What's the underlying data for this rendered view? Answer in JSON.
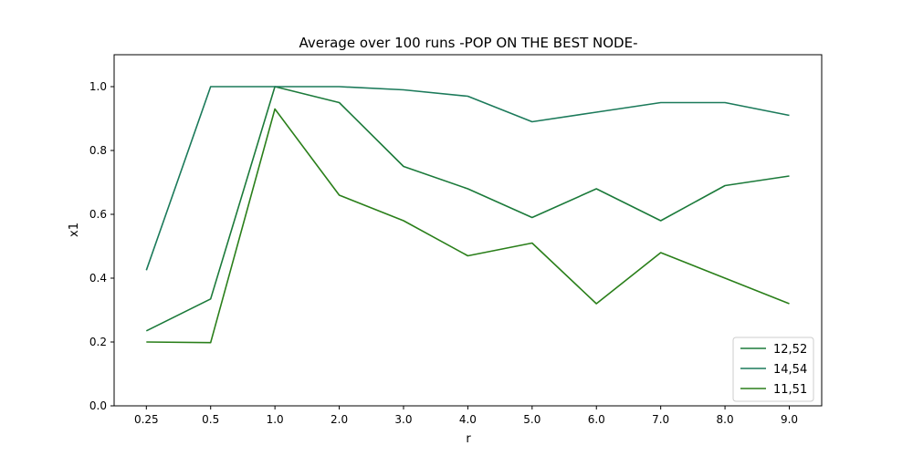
{
  "chart_data": {
    "type": "line",
    "title": "Average over 100 runs -POP ON THE BEST NODE-",
    "xlabel": "r",
    "ylabel": "x1",
    "categories": [
      "0.25",
      "0.5",
      "1.0",
      "2.0",
      "3.0",
      "4.0",
      "5.0",
      "6.0",
      "7.0",
      "8.0",
      "9.0"
    ],
    "yticks": [
      "0.0",
      "0.2",
      "0.4",
      "0.6",
      "0.8",
      "1.0"
    ],
    "ylim": [
      0,
      1.1
    ],
    "grid": false,
    "legend_position": "lower-right",
    "series": [
      {
        "name": "12,52",
        "color": "#1b7a3a",
        "values": [
          0.235,
          0.335,
          1.0,
          0.95,
          0.75,
          0.68,
          0.59,
          0.68,
          0.58,
          0.69,
          0.72
        ]
      },
      {
        "name": "14,54",
        "color": "#1b7a5a",
        "values": [
          0.425,
          1.0,
          1.0,
          1.0,
          0.99,
          0.97,
          0.89,
          0.92,
          0.95,
          0.95,
          0.91
        ]
      },
      {
        "name": "11,51",
        "color": "#2a7f1a",
        "values": [
          0.2,
          0.198,
          0.93,
          0.66,
          0.58,
          0.47,
          0.51,
          0.32,
          0.48,
          0.4,
          0.32
        ]
      }
    ]
  }
}
